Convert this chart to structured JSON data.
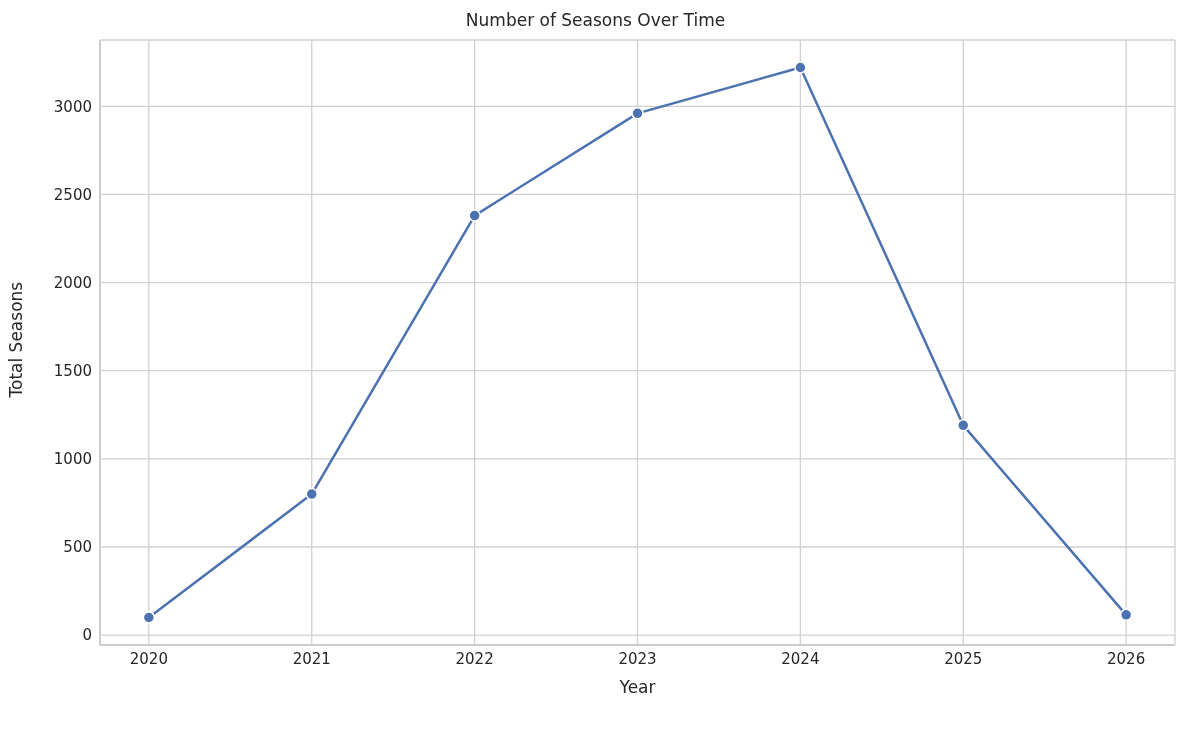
{
  "chart_data": {
    "type": "line",
    "title": "Number of Seasons Over Time",
    "xlabel": "Year",
    "ylabel": "Total Seasons",
    "x": [
      2020,
      2021,
      2022,
      2023,
      2024,
      2025,
      2026
    ],
    "series": [
      {
        "color": "#4c72b0",
        "values": [
          100,
          800,
          2380,
          2960,
          3220,
          1190,
          115
        ]
      }
    ],
    "xlim": [
      2019.7,
      2026.3
    ],
    "xticks": [
      2020,
      2021,
      2022,
      2023,
      2024,
      2025,
      2026
    ],
    "ylim": [
      -56,
      3376
    ],
    "yticks": [
      0,
      500,
      1000,
      1500,
      2000,
      2500,
      3000
    ],
    "grid": true,
    "legend": false,
    "marker": "circle",
    "line_style": "solid"
  }
}
